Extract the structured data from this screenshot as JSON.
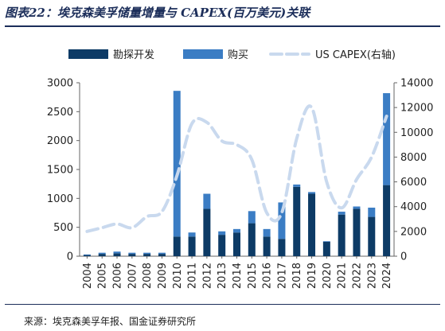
{
  "title": "图表22：埃克森美孚储量增量与 CAPEX(百万美元)关联",
  "source": "来源：埃克森美孚年报、国金证券研究所",
  "legend": [
    {
      "label": "勘探开发",
      "kind": "bar",
      "color": "#0d3b66"
    },
    {
      "label": "购买",
      "kind": "bar",
      "color": "#3b7dc4"
    },
    {
      "label": "US CAPEX(右轴)",
      "kind": "line",
      "color": "#c9d9ee"
    }
  ],
  "chart_data": {
    "type": "bar",
    "stacked": true,
    "categories": [
      "2004",
      "2005",
      "2006",
      "2007",
      "2008",
      "2009",
      "2010",
      "2011",
      "2012",
      "2013",
      "2014",
      "2015",
      "2016",
      "2017",
      "2018",
      "2019",
      "2020",
      "2021",
      "2022",
      "2023",
      "2024"
    ],
    "series": [
      {
        "name": "勘探开发",
        "axis": "left",
        "color": "#0d3b66",
        "values": [
          20,
          40,
          50,
          40,
          40,
          40,
          340,
          340,
          820,
          370,
          410,
          570,
          340,
          300,
          1200,
          1080,
          250,
          720,
          820,
          680,
          1230
        ]
      },
      {
        "name": "购买",
        "axis": "left",
        "color": "#3b7dc4",
        "values": [
          10,
          20,
          30,
          20,
          20,
          20,
          2520,
          70,
          260,
          60,
          60,
          210,
          130,
          630,
          40,
          30,
          10,
          50,
          40,
          160,
          1590
        ]
      },
      {
        "name": "US CAPEX(右轴)",
        "axis": "right",
        "type": "line",
        "style": "dashed",
        "color": "#c9d9ee",
        "values": [
          2000,
          2300,
          2600,
          2300,
          3200,
          3600,
          6500,
          10700,
          10800,
          9300,
          9000,
          7800,
          3500,
          3500,
          9500,
          12000,
          6000,
          3900,
          6200,
          8000,
          11300
        ]
      }
    ],
    "ylim_left": [
      0,
      3000
    ],
    "yticks_left": [
      0,
      500,
      1000,
      1500,
      2000,
      2500,
      3000
    ],
    "ylim_right": [
      0,
      14000
    ],
    "yticks_right": [
      0,
      2000,
      4000,
      6000,
      8000,
      10000,
      12000,
      14000
    ],
    "grid": false,
    "legend_position": "top"
  }
}
